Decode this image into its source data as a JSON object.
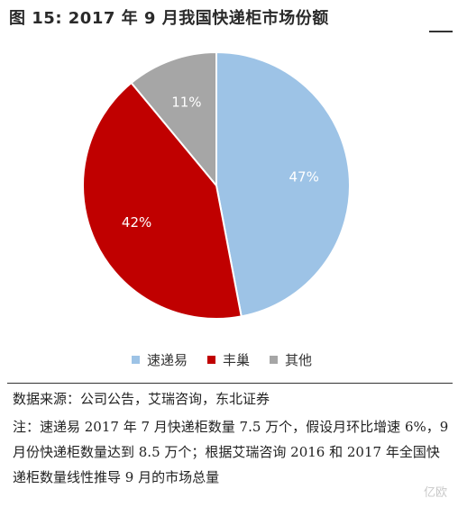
{
  "title": "图  15:  2017 年 9 月我国快递柜市场份额",
  "chart_data": {
    "type": "pie",
    "title": "",
    "slices": [
      {
        "label": "速递易",
        "value": 47,
        "display": "47%",
        "color": "#9dc3e6"
      },
      {
        "label": "丰巢",
        "value": 42,
        "display": "42%",
        "color": "#c00000"
      },
      {
        "label": "其他",
        "value": 11,
        "display": "11%",
        "color": "#a6a6a6"
      }
    ],
    "start": "12 o'clock",
    "direction": "clockwise",
    "legend_position": "bottom"
  },
  "source": "数据来源：公司公告，艾瑞咨询，东北证券",
  "note": "注：速递易 2017 年 7 月快递柜数量 7.5 万个，假设月环比增速 6%，9 月份快递柜数量达到 8.5 万个；根据艾瑞咨询 2016 和 2017 年全国快递柜数量线性推导 9 月的市场总量",
  "watermark": "亿欧"
}
